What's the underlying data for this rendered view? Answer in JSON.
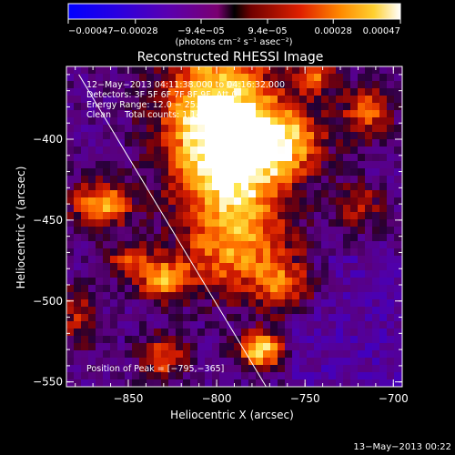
{
  "chart_data": {
    "type": "heatmap",
    "title": "Reconstructed RHESSI Image",
    "xlabel": "Heliocentric X (arcsec)",
    "ylabel": "Heliocentric Y (arcsec)",
    "xlim": [
      -885,
      -695
    ],
    "ylim": [
      -553,
      -355
    ],
    "x_ticks": [
      -850,
      -800,
      -750,
      -700
    ],
    "y_ticks": [
      -400,
      -450,
      -500,
      -550
    ],
    "x_tick_labels": [
      "−850",
      "−800",
      "−750",
      "−700"
    ],
    "y_tick_labels": [
      "−400",
      "−450",
      "−500",
      "−550"
    ],
    "colorbar": {
      "min": -0.00047,
      "max": 0.00047,
      "ticks": [
        -0.00047,
        -0.00028,
        -9.4e-05,
        9.4e-05,
        0.00028,
        0.00047
      ],
      "tick_labels": [
        "−0.00047",
        "−0.00028",
        "−9.4e−05",
        "9.4e−05",
        "0.00028",
        "0.00047"
      ],
      "unit_label": "(photons cm⁻² s⁻¹ asec⁻²)"
    },
    "annotations": [
      "12−May−2013 04:11:38.000 to 04:16:32.000",
      "Detectors: 3F 5F 6F 7F 8F 9F, Att 0",
      "Energy Range: 12.0 − 25.0 keV",
      "Clean     Total counts: 1.14E+04"
    ],
    "peak_label": "Position of Peak = [−795,−365]",
    "peak": {
      "x": -795,
      "y": -365
    },
    "limb_line": [
      {
        "x": -878,
        "y": -360
      },
      {
        "x": -772,
        "y": -553
      }
    ],
    "sources": [
      {
        "x": -800,
        "y": -380,
        "sx": 22,
        "sy": 30,
        "amp": 1.0
      },
      {
        "x": -790,
        "y": -420,
        "sx": 22,
        "sy": 25,
        "amp": 0.85
      },
      {
        "x": -760,
        "y": -400,
        "sx": 15,
        "sy": 15,
        "amp": 0.7
      },
      {
        "x": -865,
        "y": -440,
        "sx": 12,
        "sy": 10,
        "amp": 0.8
      },
      {
        "x": -850,
        "y": -475,
        "sx": 10,
        "sy": 8,
        "amp": 0.5
      },
      {
        "x": -830,
        "y": -487,
        "sx": 10,
        "sy": 9,
        "amp": 0.75
      },
      {
        "x": -790,
        "y": -470,
        "sx": 22,
        "sy": 20,
        "amp": 0.65
      },
      {
        "x": -760,
        "y": -490,
        "sx": 12,
        "sy": 12,
        "amp": 0.55
      },
      {
        "x": -775,
        "y": -530,
        "sx": 9,
        "sy": 8,
        "amp": 0.95
      },
      {
        "x": -830,
        "y": -535,
        "sx": 10,
        "sy": 10,
        "amp": 0.55
      },
      {
        "x": -715,
        "y": -383,
        "sx": 10,
        "sy": 12,
        "amp": 0.6
      },
      {
        "x": -720,
        "y": -440,
        "sx": 10,
        "sy": 10,
        "amp": 0.45
      },
      {
        "x": -745,
        "y": -360,
        "sx": 8,
        "sy": 8,
        "amp": 0.6
      },
      {
        "x": -878,
        "y": -510,
        "sx": 8,
        "sy": 14,
        "amp": 0.4
      }
    ]
  },
  "footer": {
    "timestamp": "13−May−2013 00:22"
  }
}
